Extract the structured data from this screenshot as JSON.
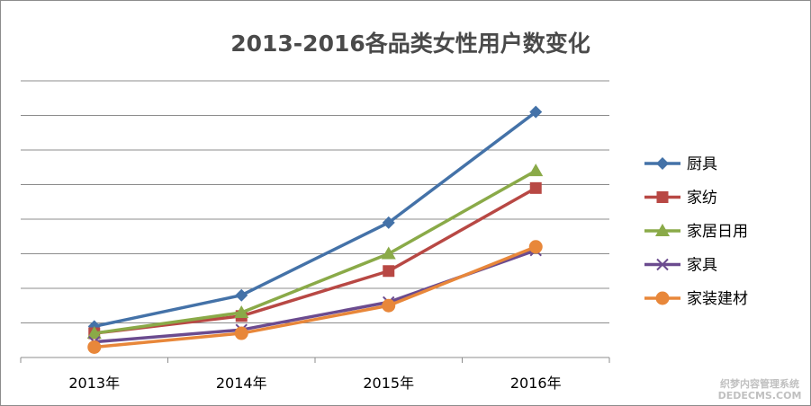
{
  "chart_data": {
    "type": "line",
    "title": "2013-2016各品类女性用户数变化",
    "categories": [
      "2013年",
      "2014年",
      "2015年",
      "2016年"
    ],
    "ylim": [
      0,
      8
    ],
    "grid": true,
    "legend": "right",
    "series": [
      {
        "name": "厨具",
        "values": [
          0.9,
          1.8,
          3.9,
          7.1
        ],
        "color": "#4472a8",
        "marker": "diamond"
      },
      {
        "name": "家纺",
        "values": [
          0.7,
          1.2,
          2.5,
          4.9
        ],
        "color": "#b84844",
        "marker": "square"
      },
      {
        "name": "家居日用",
        "values": [
          0.7,
          1.3,
          3.0,
          5.4
        ],
        "color": "#8aaa48",
        "marker": "triangle"
      },
      {
        "name": "家具",
        "values": [
          0.45,
          0.8,
          1.6,
          3.1
        ],
        "color": "#6b4b8f",
        "marker": "x"
      },
      {
        "name": "家装建材",
        "values": [
          0.3,
          0.7,
          1.5,
          3.2
        ],
        "color": "#e8873a",
        "marker": "circle"
      }
    ]
  },
  "watermark": {
    "line1": "织梦内容管理系统",
    "line2": "DEDECMS.COM"
  }
}
